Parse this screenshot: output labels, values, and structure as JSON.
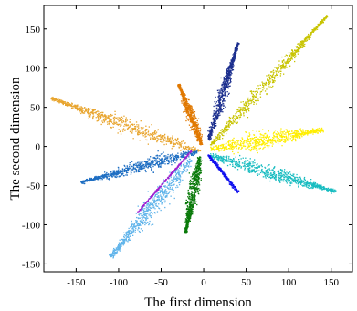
{
  "chart_data": {
    "type": "scatter",
    "title": "",
    "xlabel": "The first dimension",
    "ylabel": "The second dimension",
    "xlim": [
      -188,
      175
    ],
    "ylim": [
      -160,
      180
    ],
    "xticks": [
      -150,
      -100,
      -50,
      0,
      50,
      100,
      150
    ],
    "yticks": [
      -150,
      -100,
      -50,
      0,
      50,
      100,
      150
    ],
    "grid": false,
    "legend": "none",
    "series": [
      {
        "color": "#e8a52e",
        "start": [
          -5,
          -6
        ],
        "end": [
          -180,
          62
        ],
        "width": 20,
        "shape": "wedge"
      },
      {
        "color": "#c8c400",
        "start": [
          8,
          2
        ],
        "end": [
          145,
          168
        ],
        "width": 14,
        "shape": "wedge"
      },
      {
        "color": "#1c2f8e",
        "start": [
          5,
          8
        ],
        "end": [
          40,
          133
        ],
        "width": 11,
        "shape": "wedge"
      },
      {
        "color": "#e07800",
        "start": [
          -3,
          3
        ],
        "end": [
          -30,
          80
        ],
        "width": 11,
        "shape": "wedge"
      },
      {
        "color": "#ffee00",
        "start": [
          8,
          -3
        ],
        "end": [
          140,
          22
        ],
        "width": 22,
        "shape": "wedge"
      },
      {
        "color": "#18bcc0",
        "start": [
          5,
          -10
        ],
        "end": [
          155,
          -57
        ],
        "width": 18,
        "shape": "wedge"
      },
      {
        "color": "#1e6ec2",
        "start": [
          -8,
          -6
        ],
        "end": [
          -145,
          -45
        ],
        "width": 17,
        "shape": "wedge"
      },
      {
        "color": "#60b4ea",
        "start": [
          -15,
          -15
        ],
        "end": [
          -110,
          -140
        ],
        "width": 22,
        "shape": "wedge"
      },
      {
        "color": "#a020d0",
        "start": [
          -15,
          -5
        ],
        "end": [
          -78,
          -83
        ],
        "width": 3,
        "shape": "band"
      },
      {
        "color": "#0a7a0a",
        "start": [
          -5,
          -12
        ],
        "end": [
          -22,
          -110
        ],
        "width": 13,
        "shape": "wedge"
      },
      {
        "color": "#1010ee",
        "start": [
          5,
          -10
        ],
        "end": [
          40,
          -58
        ],
        "width": 7,
        "shape": "band"
      }
    ]
  }
}
